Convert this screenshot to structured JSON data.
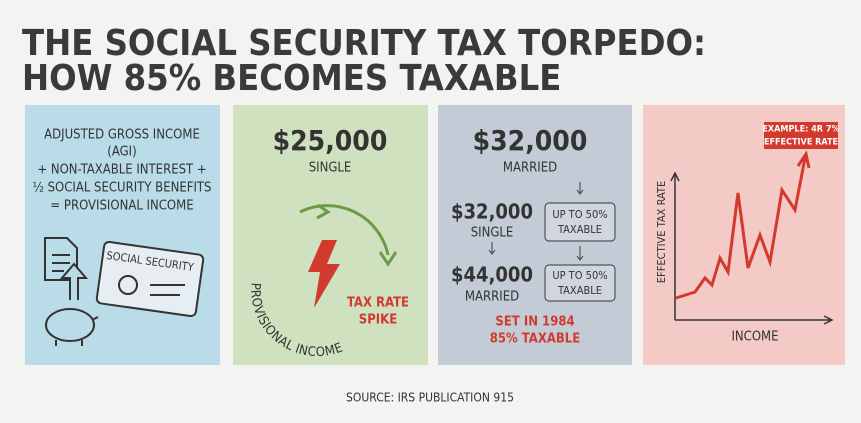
{
  "header": {
    "title_lines": [
      "THE SOCIAL SECURITY TAX TORPEDO:",
      "HOW 85% BECOMES TAXABLE"
    ]
  },
  "panels": [
    {
      "lines": [
        "ADJUSTED GROSS INCOME",
        "(AGI)",
        "+ NON-TAXABLE INTEREST +",
        "½ SOCIAL SECURITY BENEFITS",
        "= PROVISIONAL INCOME"
      ],
      "card_label": "SOCIAL SECURITY"
    },
    {
      "amount": "$25,000",
      "status": "SINGLE",
      "curve_label": "PROVISIONAL INCOME",
      "spike_lines": [
        "TAX RATE",
        "SPIKE"
      ]
    },
    {
      "amount": "$32,000",
      "status": "MARRIED",
      "rows": [
        {
          "amount": "$32,000",
          "status": "SINGLE",
          "box": [
            "UP TO 50%",
            "TAXABLE"
          ]
        },
        {
          "amount": "$44,000",
          "status": "MARRIED",
          "box": [
            "UP TO 50%",
            "TAXABLE"
          ]
        }
      ],
      "note_lines": [
        "SET IN 1984",
        "85% TAXABLE"
      ]
    },
    {
      "callout_lines": [
        "EXAMPLE: 4R 7%",
        "EFFECTIVE RATE"
      ],
      "y_label": "EFFECTIVE TAX RATE",
      "x_label": "INCOME"
    }
  ],
  "footer": {
    "source": "SOURCE: IRS PUBLICATION 915"
  }
}
